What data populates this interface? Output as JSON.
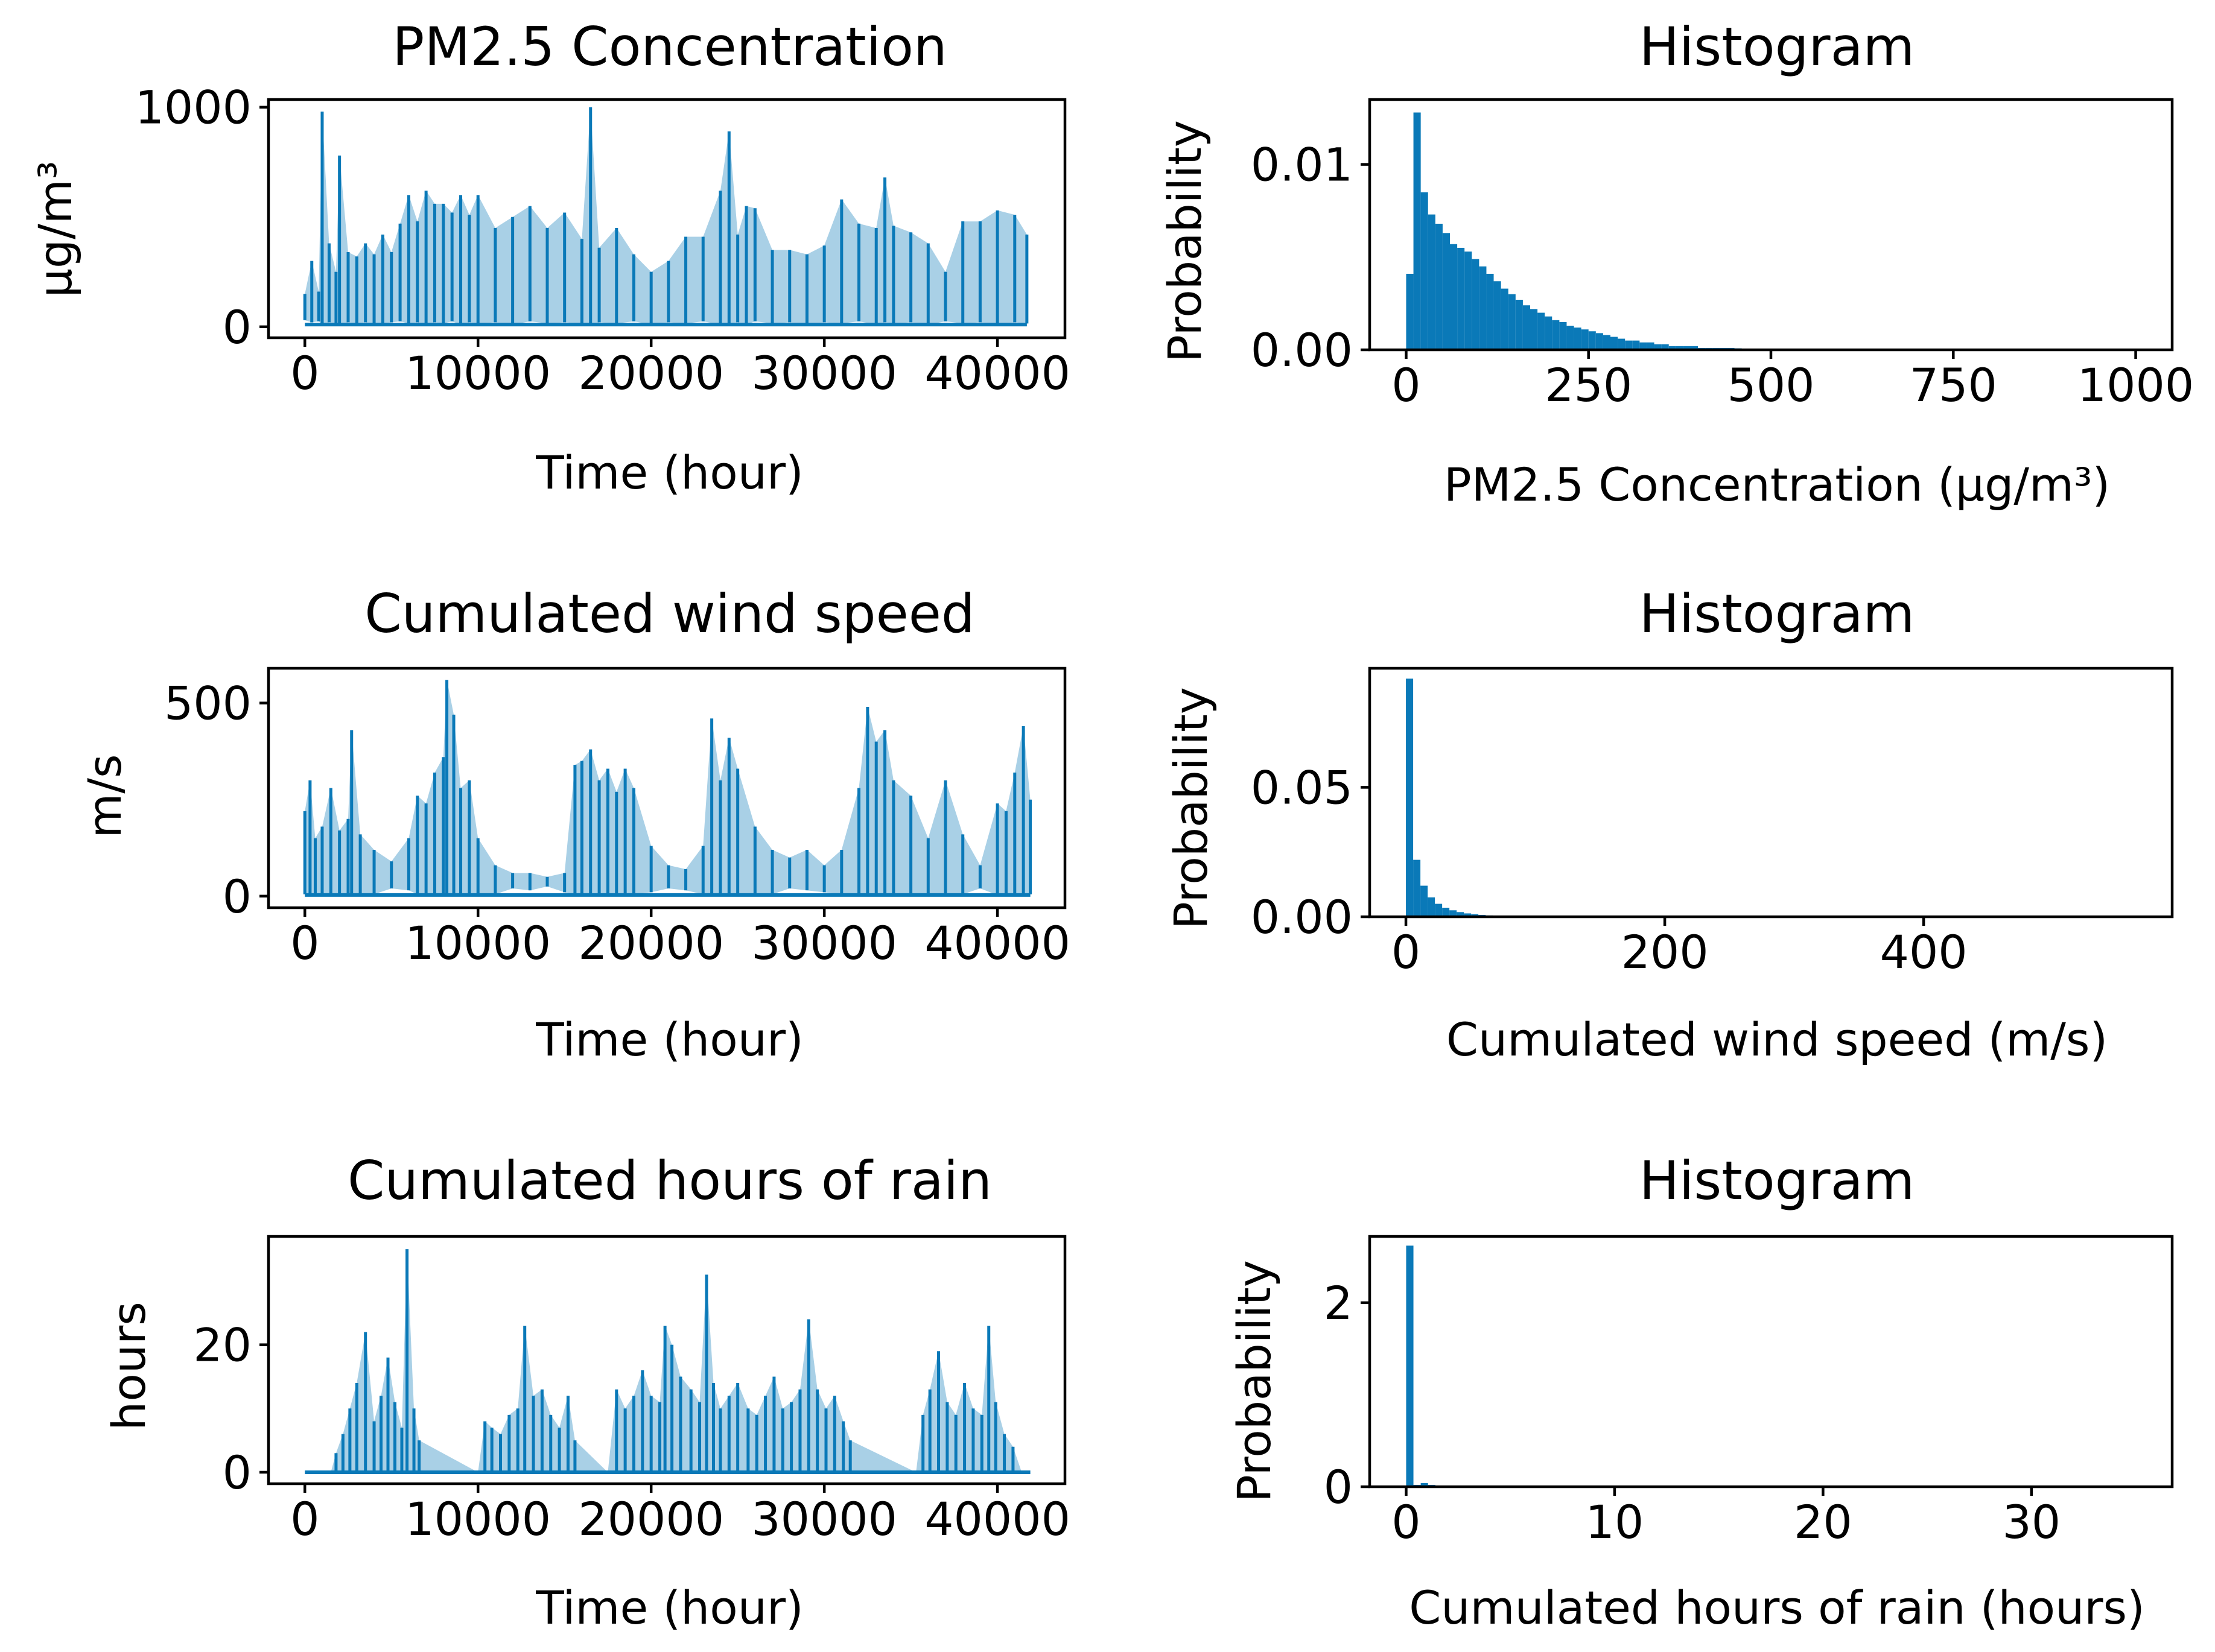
{
  "colors": {
    "series": "#0a79b8",
    "axes": "#000000",
    "background": "#ffffff"
  },
  "chart_data": [
    {
      "id": "pm25-series",
      "type": "line",
      "title": "PM2.5 Concentration",
      "xlabel": "Time (hour)",
      "ylabel": "μg/m³",
      "xlim": [
        -2100,
        43900
      ],
      "ylim": [
        -50,
        1035
      ],
      "xticks": [
        0,
        10000,
        20000,
        30000,
        40000
      ],
      "xtick_labels": [
        "0",
        "10000",
        "20000",
        "30000",
        "40000"
      ],
      "yticks": [
        0,
        1000
      ],
      "ytick_labels": [
        "0",
        "1000"
      ],
      "x": [
        0,
        400,
        800,
        1000,
        1400,
        1800,
        2000,
        2500,
        3000,
        3500,
        4000,
        4500,
        5000,
        5500,
        6000,
        6500,
        7000,
        7500,
        8000,
        8500,
        9000,
        9500,
        10000,
        11000,
        12000,
        13000,
        14000,
        15000,
        16000,
        16500,
        17000,
        18000,
        19000,
        20000,
        21000,
        22000,
        23000,
        24000,
        24500,
        25000,
        25500,
        26000,
        27000,
        28000,
        29000,
        30000,
        31000,
        32000,
        33000,
        33500,
        34000,
        35000,
        36000,
        37000,
        38000,
        39000,
        40000,
        41000,
        41700
      ],
      "values": [
        150,
        300,
        160,
        980,
        380,
        250,
        780,
        340,
        320,
        380,
        330,
        420,
        340,
        470,
        600,
        480,
        620,
        560,
        560,
        520,
        600,
        510,
        600,
        450,
        500,
        550,
        450,
        520,
        400,
        1000,
        360,
        450,
        330,
        250,
        300,
        410,
        410,
        620,
        890,
        420,
        550,
        540,
        350,
        350,
        330,
        370,
        580,
        470,
        450,
        680,
        460,
        430,
        380,
        250,
        480,
        480,
        530,
        510,
        420
      ],
      "lows": [
        30,
        20,
        25,
        10,
        20,
        15,
        10,
        20,
        15,
        20,
        10,
        15,
        20,
        25,
        15,
        20,
        10,
        20,
        15,
        25,
        10,
        20,
        15,
        20,
        10,
        25,
        15,
        20,
        15,
        10,
        20,
        15,
        25,
        10,
        20,
        15,
        25,
        10,
        15,
        20,
        10,
        25,
        15,
        20,
        10,
        20,
        15,
        25,
        10,
        20,
        15,
        20,
        10,
        25,
        15,
        20,
        10,
        20,
        15
      ]
    },
    {
      "id": "pm25-hist",
      "type": "bar",
      "title": "Histogram",
      "xlabel": "PM2.5 Concentration (μg/m³)",
      "ylabel": "Probability",
      "xlim": [
        -50,
        1050
      ],
      "ylim": [
        0,
        0.0135
      ],
      "xticks": [
        0,
        250,
        500,
        750,
        1000
      ],
      "xtick_labels": [
        "0",
        "250",
        "500",
        "750",
        "1000"
      ],
      "yticks": [
        0,
        0.01
      ],
      "ytick_labels": [
        "0.00",
        "0.01"
      ],
      "bin_start": 0,
      "bin_width": 10,
      "values": [
        0.0041,
        0.0128,
        0.0085,
        0.0073,
        0.0068,
        0.0063,
        0.0057,
        0.0055,
        0.0053,
        0.0049,
        0.0045,
        0.0041,
        0.0037,
        0.0033,
        0.003,
        0.0027,
        0.0024,
        0.0022,
        0.002,
        0.0018,
        0.0016,
        0.0015,
        0.0013,
        0.0012,
        0.0011,
        0.001,
        0.0009,
        0.0008,
        0.0007,
        0.0006,
        0.0005,
        0.0005,
        0.0004,
        0.0004,
        0.0003,
        0.0003,
        0.0002,
        0.0002,
        0.0002,
        0.0002,
        0.0001,
        0.0001,
        0.0001,
        0.0001,
        0.0001,
        8e-05,
        6e-05,
        5e-05,
        4e-05,
        3e-05
      ]
    },
    {
      "id": "wind-series",
      "type": "line",
      "title": "Cumulated wind speed",
      "xlabel": "Time (hour)",
      "ylabel": "m/s",
      "xlim": [
        -2100,
        43900
      ],
      "ylim": [
        -30,
        590
      ],
      "xticks": [
        0,
        10000,
        20000,
        30000,
        40000
      ],
      "xtick_labels": [
        "0",
        "10000",
        "20000",
        "30000",
        "40000"
      ],
      "yticks": [
        0,
        500
      ],
      "ytick_labels": [
        "0",
        "500"
      ],
      "x": [
        0,
        300,
        600,
        1000,
        1500,
        2000,
        2500,
        2700,
        3200,
        4000,
        5000,
        6000,
        6500,
        7000,
        7500,
        8000,
        8200,
        8600,
        9000,
        9500,
        10000,
        11000,
        12000,
        13000,
        14000,
        15000,
        15600,
        16000,
        16500,
        17000,
        17500,
        18000,
        18500,
        19000,
        20000,
        21000,
        22000,
        23000,
        23500,
        24000,
        24500,
        25000,
        26000,
        27000,
        28000,
        29000,
        30000,
        31000,
        32000,
        32500,
        33000,
        33500,
        34000,
        35000,
        36000,
        37000,
        38000,
        39000,
        40000,
        40500,
        41000,
        41500,
        41900
      ],
      "values": [
        220,
        300,
        150,
        180,
        280,
        170,
        200,
        430,
        160,
        120,
        90,
        150,
        260,
        240,
        320,
        360,
        560,
        470,
        280,
        300,
        150,
        80,
        60,
        60,
        50,
        60,
        340,
        350,
        380,
        300,
        330,
        270,
        330,
        280,
        130,
        80,
        70,
        130,
        460,
        300,
        410,
        330,
        180,
        120,
        100,
        120,
        80,
        120,
        280,
        490,
        400,
        430,
        300,
        260,
        150,
        300,
        160,
        80,
        240,
        220,
        320,
        440,
        250
      ],
      "lows": [
        5,
        5,
        3,
        5,
        4,
        3,
        5,
        4,
        3,
        5,
        20,
        15,
        5,
        4,
        3,
        5,
        4,
        3,
        5,
        4,
        3,
        5,
        20,
        15,
        25,
        10,
        3,
        5,
        4,
        3,
        5,
        4,
        3,
        5,
        10,
        20,
        15,
        5,
        3,
        4,
        5,
        3,
        4,
        5,
        20,
        15,
        10,
        5,
        4,
        3,
        5,
        4,
        3,
        5,
        4,
        3,
        5,
        20,
        3,
        4,
        5,
        3,
        5
      ]
    },
    {
      "id": "wind-hist",
      "type": "bar",
      "title": "Histogram",
      "xlabel": "Cumulated wind speed (m/s)",
      "ylabel": "Probability",
      "xlim": [
        -28,
        592
      ],
      "ylim": [
        0,
        0.096
      ],
      "xticks": [
        0,
        200,
        400
      ],
      "xtick_labels": [
        "0",
        "200",
        "400"
      ],
      "yticks": [
        0,
        0.05
      ],
      "ytick_labels": [
        "0.00",
        "0.05"
      ],
      "bin_start": 0,
      "bin_width": 5.6,
      "values": [
        0.092,
        0.022,
        0.012,
        0.0075,
        0.005,
        0.0035,
        0.0025,
        0.0018,
        0.0013,
        0.001,
        0.0007,
        0.0005,
        0.0004,
        0.0003,
        0.0002,
        0.0002,
        0.0001,
        0.0001,
        0.0001,
        5e-05
      ]
    },
    {
      "id": "rain-series",
      "type": "line",
      "title": "Cumulated hours of rain",
      "xlabel": "Time (hour)",
      "ylabel": "hours",
      "xlim": [
        -2100,
        43900
      ],
      "ylim": [
        -1.8,
        37
      ],
      "xticks": [
        0,
        10000,
        20000,
        30000,
        40000
      ],
      "xtick_labels": [
        "0",
        "10000",
        "20000",
        "30000",
        "40000"
      ],
      "yticks": [
        0,
        20
      ],
      "ytick_labels": [
        "0",
        "20"
      ],
      "x": [
        0,
        1500,
        1800,
        2200,
        2600,
        3000,
        3500,
        4000,
        4400,
        4800,
        5200,
        5600,
        5900,
        6300,
        6600,
        10000,
        10400,
        10800,
        11300,
        11800,
        12300,
        12700,
        13200,
        13700,
        14200,
        14700,
        15200,
        15600,
        17500,
        18000,
        18500,
        19000,
        19500,
        20000,
        20500,
        20800,
        21200,
        21700,
        22300,
        22800,
        23200,
        23600,
        24000,
        24500,
        25000,
        25600,
        26100,
        26600,
        27100,
        27600,
        28100,
        28600,
        29100,
        29600,
        30100,
        30600,
        31100,
        31500,
        35300,
        35700,
        36100,
        36600,
        37100,
        37600,
        38100,
        38600,
        39100,
        39500,
        39900,
        40400,
        40900,
        41400,
        41900
      ],
      "values": [
        0,
        0,
        3,
        6,
        10,
        14,
        22,
        8,
        12,
        18,
        11,
        7,
        35,
        10,
        5,
        0,
        8,
        7,
        6,
        9,
        10,
        23,
        12,
        13,
        9,
        7,
        12,
        5,
        0,
        13,
        10,
        12,
        16,
        12,
        11,
        23,
        20,
        15,
        13,
        11,
        31,
        14,
        10,
        12,
        14,
        10,
        9,
        12,
        15,
        10,
        11,
        13,
        24,
        13,
        10,
        12,
        8,
        5,
        0,
        9,
        13,
        19,
        11,
        9,
        14,
        10,
        9,
        23,
        11,
        6,
        4,
        0,
        0
      ]
    },
    {
      "id": "rain-hist",
      "type": "bar",
      "title": "Histogram",
      "xlabel": "Cumulated hours of rain (hours)",
      "ylabel": "Probability",
      "xlim": [
        -1.75,
        36.75
      ],
      "ylim": [
        0,
        2.72
      ],
      "xticks": [
        0,
        10,
        20,
        30
      ],
      "xtick_labels": [
        "0",
        "10",
        "20",
        "30"
      ],
      "yticks": [
        0,
        2
      ],
      "ytick_labels": [
        "0",
        "2"
      ],
      "bin_start": 0,
      "bin_width": 0.35,
      "values": [
        2.62,
        0.02,
        0.04,
        0.02,
        0.01,
        0.008,
        0.006,
        0.005,
        0.004,
        0.003,
        0.003,
        0.002,
        0.002,
        0.002,
        0.001,
        0.001,
        0.001,
        0.001,
        0.001,
        0.001
      ]
    }
  ]
}
